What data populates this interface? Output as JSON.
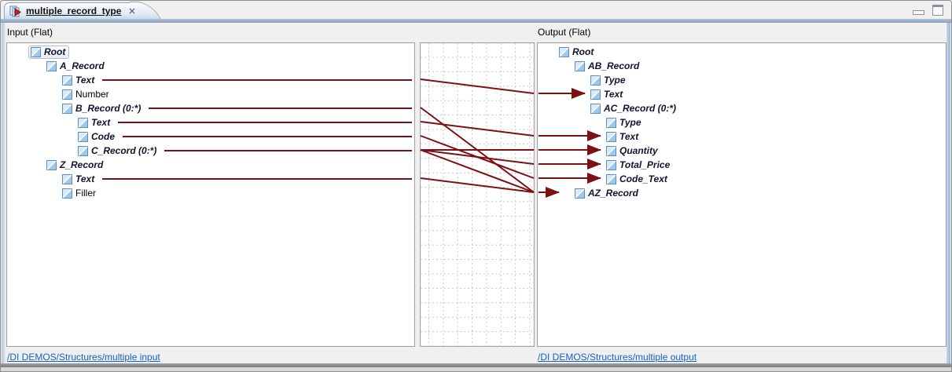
{
  "window": {
    "tab_title": "multiple_record_type",
    "close_glyph": "✕"
  },
  "panels": {
    "input": {
      "header": "Input (Flat)",
      "footer_link": "/DI DEMOS/Structures/multiple input",
      "rows": [
        {
          "id": "root",
          "label": "Root",
          "level": 0,
          "mapped": true,
          "selected": true
        },
        {
          "id": "a_record",
          "label": "A_Record",
          "level": 1,
          "mapped": true
        },
        {
          "id": "a_text",
          "label": "Text",
          "level": 2,
          "mapped": true,
          "line": true
        },
        {
          "id": "a_number",
          "label": "Number",
          "level": 2,
          "mapped": false
        },
        {
          "id": "b_record",
          "label": "B_Record (0:*)",
          "level": 2,
          "mapped": true,
          "line": true
        },
        {
          "id": "b_text",
          "label": "Text",
          "level": 3,
          "mapped": true,
          "line": true
        },
        {
          "id": "b_code",
          "label": "Code",
          "level": 3,
          "mapped": true,
          "line": true
        },
        {
          "id": "c_record",
          "label": "C_Record (0:*)",
          "level": 3,
          "mapped": true,
          "line": true
        },
        {
          "id": "z_record",
          "label": "Z_Record",
          "level": 1,
          "mapped": true
        },
        {
          "id": "z_text",
          "label": "Text",
          "level": 2,
          "mapped": true,
          "line": true
        },
        {
          "id": "z_filler",
          "label": "Filler",
          "level": 2,
          "mapped": false
        }
      ]
    },
    "output": {
      "header": "Output (Flat)",
      "footer_link": "/DI DEMOS/Structures/multiple output",
      "rows": [
        {
          "id": "o_root",
          "label": "Root",
          "level": 0,
          "mapped": true
        },
        {
          "id": "ab_record",
          "label": "AB_Record",
          "level": 1,
          "mapped": true
        },
        {
          "id": "ab_type",
          "label": "Type",
          "level": 2,
          "mapped": true
        },
        {
          "id": "ab_text",
          "label": "Text",
          "level": 2,
          "mapped": true,
          "arrow": true
        },
        {
          "id": "ac_record",
          "label": "AC_Record (0:*)",
          "level": 2,
          "mapped": true
        },
        {
          "id": "ac_type",
          "label": "Type",
          "level": 3,
          "mapped": true
        },
        {
          "id": "ac_text",
          "label": "Text",
          "level": 3,
          "mapped": true,
          "arrow": true
        },
        {
          "id": "ac_quantity",
          "label": "Quantity",
          "level": 3,
          "mapped": true,
          "arrow": true
        },
        {
          "id": "ac_total_price",
          "label": "Total_Price",
          "level": 3,
          "mapped": true,
          "arrow": true
        },
        {
          "id": "ac_code_text",
          "label": "Code_Text",
          "level": 3,
          "mapped": true,
          "arrow": true
        },
        {
          "id": "az_record",
          "label": "AZ_Record",
          "level": 1,
          "mapped": true,
          "arrow": true,
          "arrow_short": true
        }
      ]
    }
  },
  "connections": [
    {
      "from": "a_text",
      "to": "ab_text"
    },
    {
      "from": "b_record",
      "to": "az_record"
    },
    {
      "from": "b_text",
      "to": "ac_text"
    },
    {
      "from": "b_code",
      "to": "ac_code_text"
    },
    {
      "from": "c_record",
      "to": "ac_quantity"
    },
    {
      "from": "c_record",
      "to": "ac_total_price"
    },
    {
      "from": "c_record",
      "to": "az_record"
    },
    {
      "from": "z_text",
      "to": "az_record"
    }
  ],
  "colors": {
    "map_line": "#7c1013",
    "grid_line": "#c9c9c9",
    "link": "#1161cc",
    "icon_fill_light": "#d8eaf9",
    "icon_fill_dark": "#9fc7e7",
    "icon_border": "#5a8fbe"
  }
}
